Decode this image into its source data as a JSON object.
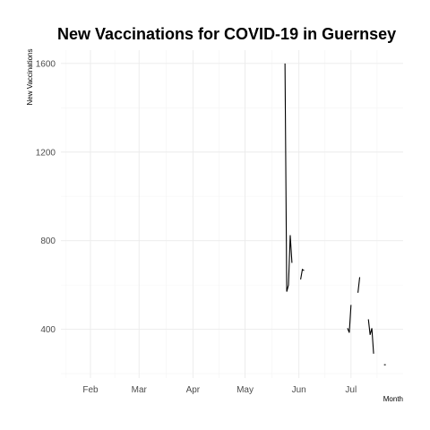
{
  "chart_data": {
    "type": "line",
    "title": "New Vaccinations for COVID-19 in Guernsey",
    "xlabel": "Month",
    "ylabel": "New Vaccinations",
    "x_ticks": [
      "Feb",
      "Mar",
      "Apr",
      "May",
      "Jun",
      "Jul"
    ],
    "x_tick_dates": [
      "2021-02-01",
      "2021-03-01",
      "2021-04-01",
      "2021-05-01",
      "2021-06-01",
      "2021-07-01"
    ],
    "xlim": [
      "2021-01-15",
      "2021-07-31"
    ],
    "y_ticks": [
      400,
      800,
      1200,
      1600
    ],
    "ylim": [
      180,
      1660
    ],
    "grid": true,
    "legend": "none",
    "color": "#000000",
    "series": [
      {
        "segments": [
          [
            [
              "2021-05-24",
              1600
            ],
            [
              "2021-05-25",
              570
            ],
            [
              "2021-05-26",
              600
            ],
            [
              "2021-05-27",
              825
            ],
            [
              "2021-05-28",
              700
            ]
          ],
          [
            [
              "2021-06-02",
              625
            ],
            [
              "2021-06-03",
              670
            ],
            [
              "2021-06-04",
              665
            ]
          ],
          [
            [
              "2021-06-29",
              405
            ],
            [
              "2021-06-30",
              385
            ],
            [
              "2021-07-01",
              510
            ]
          ],
          [
            [
              "2021-07-05",
              565
            ],
            [
              "2021-07-06",
              635
            ]
          ],
          [
            [
              "2021-07-11",
              445
            ],
            [
              "2021-07-12",
              375
            ],
            [
              "2021-07-13",
              405
            ],
            [
              "2021-07-14",
              290
            ]
          ],
          [
            [
              "2021-07-20",
              240
            ],
            [
              "2021-07-21",
              240
            ]
          ]
        ]
      }
    ]
  }
}
